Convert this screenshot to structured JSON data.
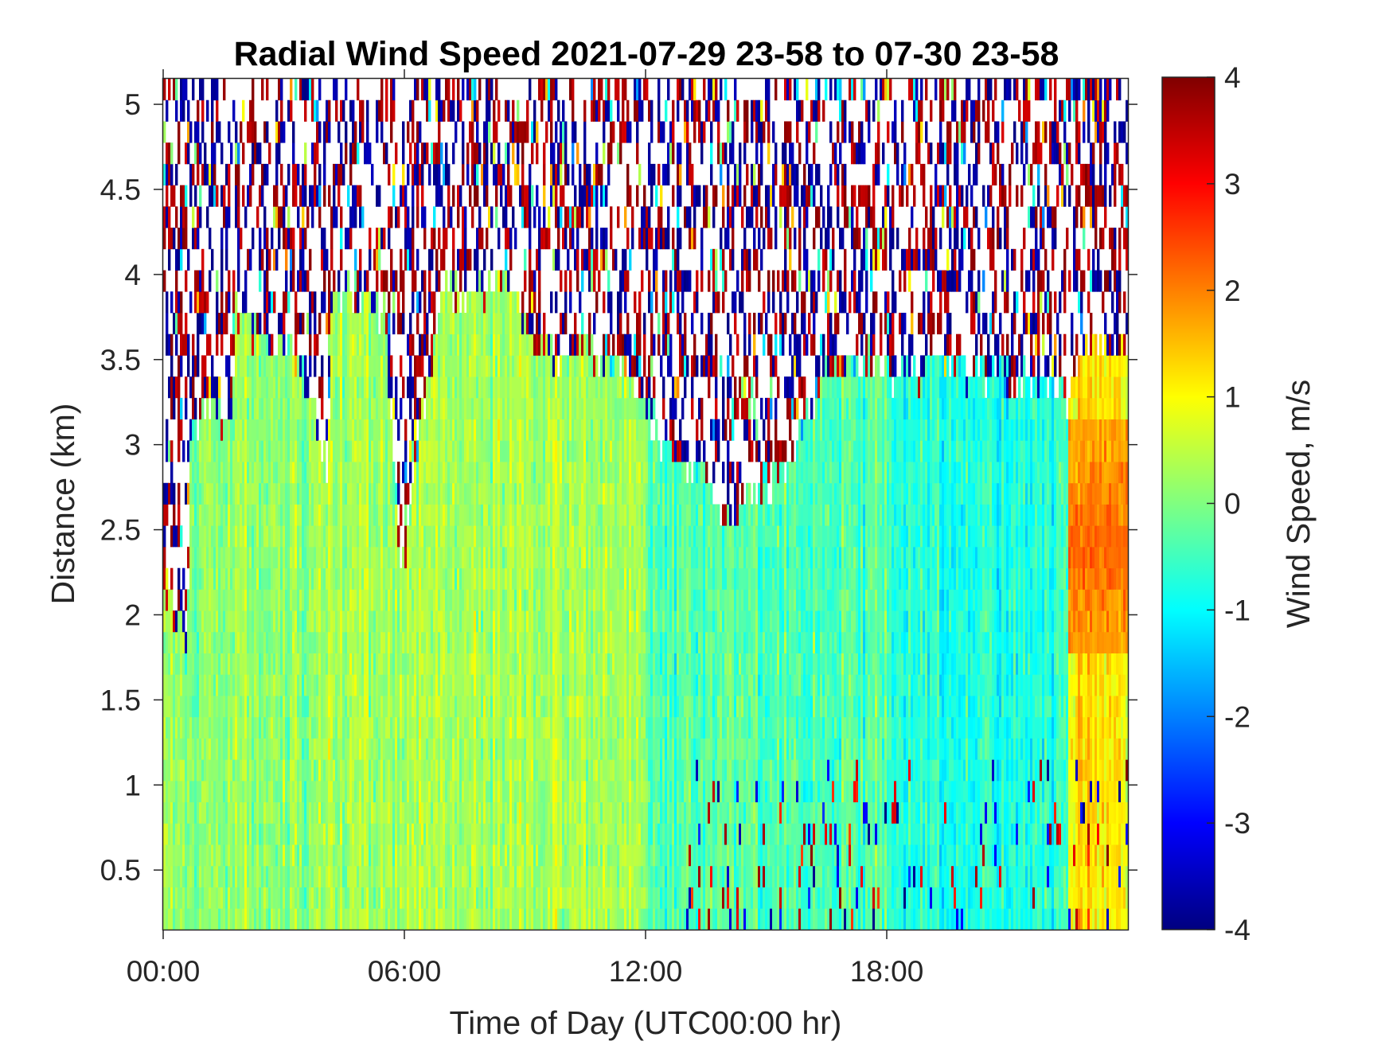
{
  "chart_data": {
    "type": "heatmap",
    "title": "Radial Wind Speed 2021-07-29 23-58 to 07-30 23-58",
    "xlabel": "Time of Day (UTC00:00 hr)",
    "ylabel": "Distance (km)",
    "xlim": [
      0,
      24
    ],
    "ylim": [
      0.15,
      5.15
    ],
    "x_ticks": [
      0,
      6,
      12,
      18
    ],
    "x_tick_labels": [
      "00:00",
      "06:00",
      "12:00",
      "18:00"
    ],
    "y_ticks": [
      0.5,
      1,
      1.5,
      2,
      2.5,
      3,
      3.5,
      4,
      4.5,
      5
    ],
    "y_tick_labels": [
      "0.5",
      "1",
      "1.5",
      "2",
      "2.5",
      "3",
      "3.5",
      "4",
      "4.5",
      "5"
    ],
    "colorbar": {
      "label": "Wind Speed, m/s",
      "colormap": "jet",
      "clim": [
        -4,
        4
      ],
      "ticks": [
        4,
        3,
        2,
        1,
        0,
        -1,
        -2,
        -3,
        -4
      ],
      "tick_labels": [
        "4",
        "3",
        "2",
        "1",
        "0",
        "-1",
        "-2",
        "-3",
        "-4"
      ]
    },
    "valid_range_top_km": {
      "hours": [
        0,
        0.6,
        0.7,
        1.7,
        1.8,
        3.5,
        3.6,
        4.1,
        4.2,
        5.5,
        5.9,
        6.9,
        7.9,
        8.4,
        8.9,
        9.9,
        10.4,
        11.4,
        12.4,
        13.7,
        14.0,
        15.0,
        15.5,
        16.5,
        17.5,
        18.5,
        20.0,
        21.0,
        22.0,
        22.6,
        23.0,
        24.0
      ],
      "top_km": [
        2.2,
        1.8,
        3.15,
        3.15,
        3.75,
        3.5,
        3.3,
        2.9,
        3.9,
        3.8,
        2.2,
        3.9,
        3.85,
        3.95,
        3.8,
        3.45,
        3.6,
        3.45,
        3.0,
        2.8,
        2.6,
        2.75,
        2.85,
        3.4,
        3.5,
        3.4,
        3.45,
        3.4,
        3.35,
        3.3,
        3.6,
        3.5
      ]
    },
    "wind_speed_regimes_m_s": [
      {
        "hours": [
          0,
          6
        ],
        "typical": 0.2
      },
      {
        "hours": [
          6,
          12
        ],
        "typical": 0.3
      },
      {
        "hours": [
          12,
          18
        ],
        "typical": -0.4
      },
      {
        "hours": [
          18,
          22.5
        ],
        "typical": -0.7
      },
      {
        "hours": [
          22.5,
          24
        ],
        "typical": 1.2,
        "max": 2.2
      }
    ]
  }
}
